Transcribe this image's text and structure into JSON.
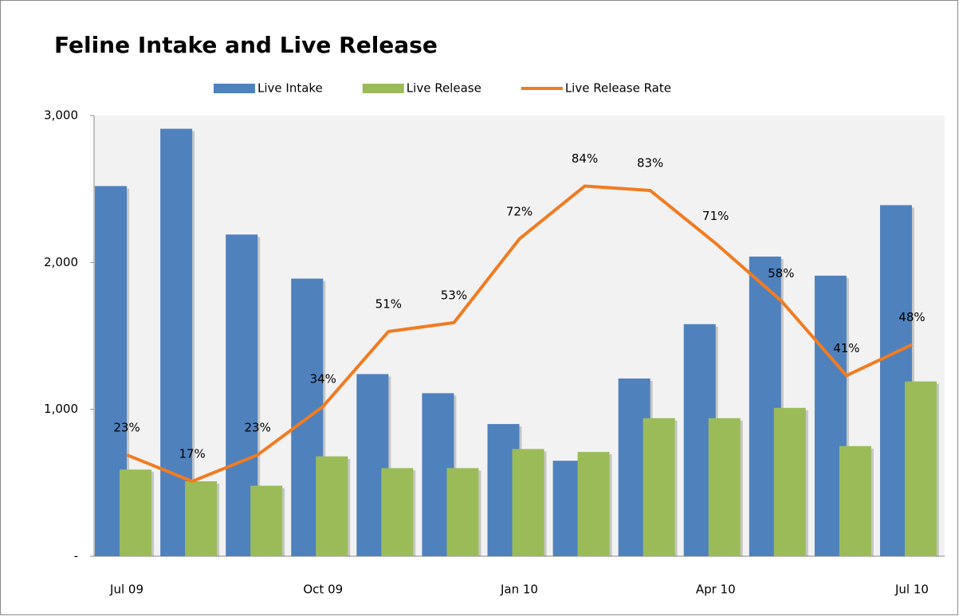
{
  "chart_data": {
    "type": "bar",
    "title": "Feline Intake and Live Release",
    "categories": [
      "Jul 09",
      null,
      null,
      "Oct 09",
      null,
      null,
      "Jan 10",
      null,
      null,
      "Apr 10",
      null,
      null,
      "Jul 10"
    ],
    "series": [
      {
        "name": "Live Intake",
        "type": "bar",
        "color": "#4f81bd",
        "values": [
          2520,
          2910,
          2190,
          1890,
          1240,
          1110,
          900,
          650,
          1210,
          1580,
          2040,
          1910,
          2390
        ]
      },
      {
        "name": "Live Release",
        "type": "bar",
        "color": "#9bbb59",
        "values": [
          590,
          510,
          480,
          680,
          600,
          600,
          730,
          710,
          940,
          940,
          1010,
          750,
          1190
        ]
      },
      {
        "name": "Live Release Rate",
        "type": "line",
        "axis": "y2",
        "color": "#f07c22",
        "values": [
          23,
          17,
          23,
          34,
          51,
          53,
          72,
          84,
          83,
          71,
          58,
          41,
          48
        ],
        "value_labels": [
          "23%",
          "17%",
          "23%",
          "34%",
          "51%",
          "53%",
          "72%",
          "84%",
          "83%",
          "71%",
          "58%",
          "41%",
          "48%"
        ]
      }
    ],
    "ylim": [
      0,
      3000
    ],
    "yticks": [
      {
        "value": 0,
        "label": "-"
      },
      {
        "value": 1000,
        "label": "1,000"
      },
      {
        "value": 2000,
        "label": "2,000"
      },
      {
        "value": 3000,
        "label": "3,000"
      }
    ],
    "y2lim": [
      0,
      100
    ],
    "legend": "top"
  }
}
